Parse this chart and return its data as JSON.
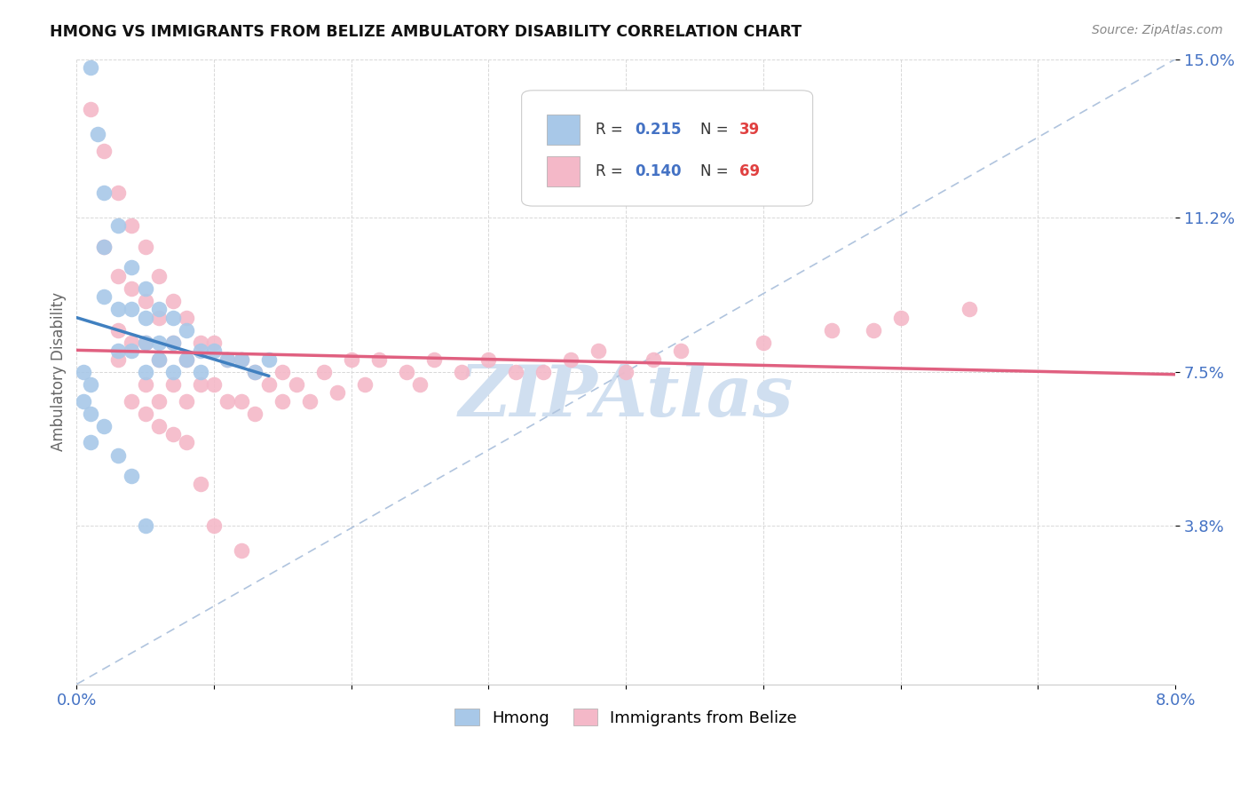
{
  "title": "HMONG VS IMMIGRANTS FROM BELIZE AMBULATORY DISABILITY CORRELATION CHART",
  "source": "Source: ZipAtlas.com",
  "ylabel": "Ambulatory Disability",
  "xmin": 0.0,
  "xmax": 0.08,
  "ymin": 0.0,
  "ymax": 0.15,
  "ytick_vals": [
    0.038,
    0.075,
    0.112,
    0.15
  ],
  "ytick_labels": [
    "3.8%",
    "7.5%",
    "11.2%",
    "15.0%"
  ],
  "xtick_vals": [
    0.0,
    0.01,
    0.02,
    0.03,
    0.04,
    0.05,
    0.06,
    0.07,
    0.08
  ],
  "xtick_labels": [
    "0.0%",
    "",
    "",
    "",
    "",
    "",
    "",
    "",
    "8.0%"
  ],
  "hmong_color": "#a8c8e8",
  "belize_color": "#f4b8c8",
  "trend_hmong_color": "#4080c0",
  "trend_belize_color": "#e06080",
  "diagonal_color": "#b0c4de",
  "watermark_color": "#d0dff0",
  "background_color": "#ffffff",
  "hmong_x": [
    0.001,
    0.0015,
    0.002,
    0.002,
    0.002,
    0.003,
    0.003,
    0.003,
    0.004,
    0.004,
    0.004,
    0.005,
    0.005,
    0.005,
    0.005,
    0.006,
    0.006,
    0.006,
    0.007,
    0.007,
    0.007,
    0.008,
    0.008,
    0.009,
    0.009,
    0.01,
    0.011,
    0.012,
    0.013,
    0.014,
    0.0005,
    0.0005,
    0.001,
    0.001,
    0.001,
    0.002,
    0.003,
    0.004,
    0.005
  ],
  "hmong_y": [
    0.148,
    0.132,
    0.118,
    0.105,
    0.093,
    0.11,
    0.09,
    0.08,
    0.1,
    0.09,
    0.08,
    0.095,
    0.088,
    0.082,
    0.075,
    0.09,
    0.082,
    0.078,
    0.088,
    0.082,
    0.075,
    0.085,
    0.078,
    0.08,
    0.075,
    0.08,
    0.078,
    0.078,
    0.075,
    0.078,
    0.075,
    0.068,
    0.072,
    0.065,
    0.058,
    0.062,
    0.055,
    0.05,
    0.038
  ],
  "belize_x": [
    0.001,
    0.002,
    0.002,
    0.003,
    0.003,
    0.003,
    0.004,
    0.004,
    0.004,
    0.005,
    0.005,
    0.005,
    0.005,
    0.006,
    0.006,
    0.006,
    0.006,
    0.007,
    0.007,
    0.007,
    0.008,
    0.008,
    0.008,
    0.009,
    0.009,
    0.01,
    0.01,
    0.011,
    0.011,
    0.012,
    0.012,
    0.013,
    0.013,
    0.014,
    0.015,
    0.015,
    0.016,
    0.017,
    0.018,
    0.019,
    0.02,
    0.021,
    0.022,
    0.024,
    0.025,
    0.026,
    0.028,
    0.03,
    0.032,
    0.034,
    0.036,
    0.038,
    0.04,
    0.042,
    0.044,
    0.05,
    0.055,
    0.058,
    0.06,
    0.065,
    0.003,
    0.004,
    0.005,
    0.006,
    0.007,
    0.008,
    0.009,
    0.01,
    0.012
  ],
  "belize_y": [
    0.138,
    0.128,
    0.105,
    0.118,
    0.098,
    0.085,
    0.11,
    0.095,
    0.082,
    0.105,
    0.092,
    0.082,
    0.072,
    0.098,
    0.088,
    0.078,
    0.068,
    0.092,
    0.082,
    0.072,
    0.088,
    0.078,
    0.068,
    0.082,
    0.072,
    0.082,
    0.072,
    0.078,
    0.068,
    0.078,
    0.068,
    0.075,
    0.065,
    0.072,
    0.075,
    0.068,
    0.072,
    0.068,
    0.075,
    0.07,
    0.078,
    0.072,
    0.078,
    0.075,
    0.072,
    0.078,
    0.075,
    0.078,
    0.075,
    0.075,
    0.078,
    0.08,
    0.075,
    0.078,
    0.08,
    0.082,
    0.085,
    0.085,
    0.088,
    0.09,
    0.078,
    0.068,
    0.065,
    0.062,
    0.06,
    0.058,
    0.048,
    0.038,
    0.032
  ]
}
